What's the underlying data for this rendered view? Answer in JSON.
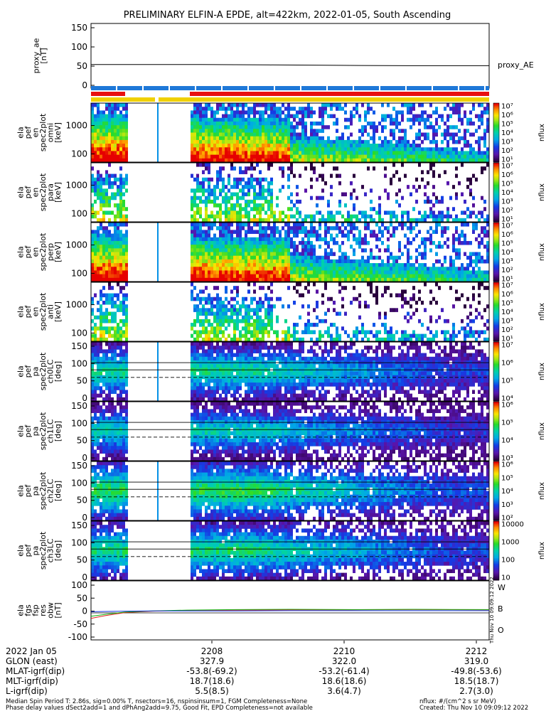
{
  "title": "PRELIMINARY ELFIN-A EPDE, alt=422km, 2022-01-05, South Ascending",
  "panels": {
    "ae": {
      "ylabel": [
        "proxy_ae",
        "[nT]"
      ],
      "yticks": [
        "150",
        "100",
        "50",
        "0"
      ],
      "legend": "proxy_AE"
    },
    "s1": {
      "ylabel": [
        "ela",
        "pef",
        "en",
        "spec2plot",
        "omni",
        "[keV]"
      ],
      "yticks": [
        "1000",
        "100"
      ]
    },
    "s2": {
      "ylabel": [
        "ela",
        "pef",
        "en",
        "spec2plot",
        "para",
        "[keV]"
      ],
      "yticks": [
        "1000",
        "100"
      ]
    },
    "s3": {
      "ylabel": [
        "ela",
        "pef",
        "en",
        "spec2plot",
        "perp",
        "[keV]"
      ],
      "yticks": [
        "1000",
        "100"
      ]
    },
    "s4": {
      "ylabel": [
        "ela",
        "pef",
        "en",
        "spec2plot",
        "anti",
        "[keV]"
      ],
      "yticks": [
        "1000",
        "100"
      ]
    },
    "p1": {
      "ylabel": [
        "ela",
        "pef",
        "pa",
        "spec2plot",
        "ch0LC",
        "[deg]"
      ],
      "yticks": [
        "150",
        "100",
        "50",
        "0"
      ]
    },
    "p2": {
      "ylabel": [
        "ela",
        "pef",
        "pa",
        "spec2plot",
        "ch1LC",
        "[deg]"
      ],
      "yticks": [
        "150",
        "100",
        "50",
        "0"
      ]
    },
    "p3": {
      "ylabel": [
        "ela",
        "pef",
        "pa",
        "spec2plot",
        "ch2LC",
        "[deg]"
      ],
      "yticks": [
        "150",
        "100",
        "50",
        "0"
      ]
    },
    "p4": {
      "ylabel": [
        "ela",
        "pef",
        "pa",
        "spec2plot",
        "ch3LC",
        "[deg]"
      ],
      "yticks": [
        "150",
        "100",
        "50",
        "0"
      ]
    },
    "b": {
      "ylabel": [
        "ela",
        "fgs",
        "fsp",
        "res",
        "obw",
        "[nT]"
      ],
      "yticks": [
        "100",
        "50",
        "0",
        "-50",
        "-100"
      ],
      "legend": [
        "W",
        "B",
        "O"
      ]
    }
  },
  "colorbars": {
    "cb1": {
      "ticks": [
        "10⁷",
        "10⁶",
        "10⁵",
        "10⁴",
        "10³",
        "10²",
        "10¹"
      ],
      "label": "nflux"
    },
    "cb2": {
      "ticks": [
        "10⁷",
        "10⁶",
        "10⁵",
        "10⁴",
        "10³",
        "10²",
        "10¹"
      ],
      "label": "nflux"
    },
    "cb3": {
      "ticks": [
        "10⁷",
        "10⁶",
        "10⁵",
        "10⁴",
        "10³",
        "10²",
        "10¹"
      ],
      "label": "nflux"
    },
    "cb4": {
      "ticks": [
        "10⁷",
        "10⁶",
        "10⁵",
        "10⁴",
        "10³",
        "10²",
        "10¹"
      ],
      "label": "nflux"
    },
    "cb5": {
      "ticks": [
        "10⁷",
        "10⁶",
        "10⁵",
        "10⁴"
      ],
      "label": "nflux"
    },
    "cb6": {
      "ticks": [
        "10⁶",
        "10⁵",
        "10⁴",
        "10³"
      ],
      "label": "nflux"
    },
    "cb7": {
      "ticks": [
        "10⁶",
        "10⁵",
        "10⁴",
        "10³",
        "10²"
      ],
      "label": "nflux"
    },
    "cb8": {
      "ticks": [
        "10000",
        "1000",
        "100",
        "10"
      ],
      "label": "nflux"
    }
  },
  "xaxis": {
    "date": "2022 Jan 05",
    "ticks": [
      "2208",
      "2210",
      "2212"
    ],
    "rows": [
      {
        "label": "GLON (east)",
        "values": [
          "327.9",
          "322.0",
          "319.0"
        ]
      },
      {
        "label": "MLAT-igrf(dip)",
        "values": [
          "-53.8(-69.2)",
          "-53.2(-61.4)",
          "-49.8(-53.6)"
        ]
      },
      {
        "label": "MLT-igrf(dip)",
        "values": [
          "18.7(18.6)",
          "18.6(18.6)",
          "18.5(18.7)"
        ]
      },
      {
        "label": "L-igrf(dip)",
        "values": [
          "5.5(8.5)",
          "3.6(4.7)",
          "2.7(3.0)"
        ]
      }
    ]
  },
  "footer": {
    "line1": "Median Spin Period T: 2.86s, sig=0.00% T, nsectors=16, nspinsinsum=1, FGM Completeness=None",
    "line2": "Phase delay values dSect2add=1 and dPhAng2add=9.75, Good Fit, EPD Completeness=not available",
    "right1": "nflux: #/(cm^2 s sr MeV)",
    "right2": "Created: Thu Nov 10 09:09:12 2022",
    "side_stamp": "Thu Nov 10 09:09:12 2022"
  },
  "colors": {
    "bar_blue": "#1e78d8",
    "bar_red": "#e81010",
    "bar_yellow": "#f0d000",
    "field_w": "#e02020",
    "field_b": "#10b010",
    "field_o": "#1030e0"
  },
  "chart_data": [
    {
      "type": "line",
      "name": "proxy_ae",
      "x": [
        2206.4,
        2208,
        2209,
        2210,
        2211,
        2212.2
      ],
      "values": [
        47,
        47,
        46,
        45,
        44,
        44
      ],
      "ylim": [
        -15,
        155
      ]
    },
    {
      "type": "line",
      "name": "ela fgs fsp res obw",
      "x": [
        2206.4,
        2206.6,
        2206.9,
        2207.3,
        2207.8,
        2208.5,
        2209.3,
        2210.2,
        2211.1,
        2212.2
      ],
      "series": [
        {
          "name": "W",
          "values": [
            -30,
            -20,
            -8,
            -3,
            0,
            1,
            2,
            2,
            3,
            2
          ]
        },
        {
          "name": "B",
          "values": [
            -22,
            -15,
            -6,
            -2,
            1,
            3,
            4,
            3,
            4,
            3
          ]
        },
        {
          "name": "O",
          "values": [
            -5,
            -4,
            -3,
            -2,
            -2,
            -2,
            -1,
            -1,
            -1,
            -1
          ]
        }
      ],
      "ylim": [
        -110,
        110
      ]
    }
  ]
}
